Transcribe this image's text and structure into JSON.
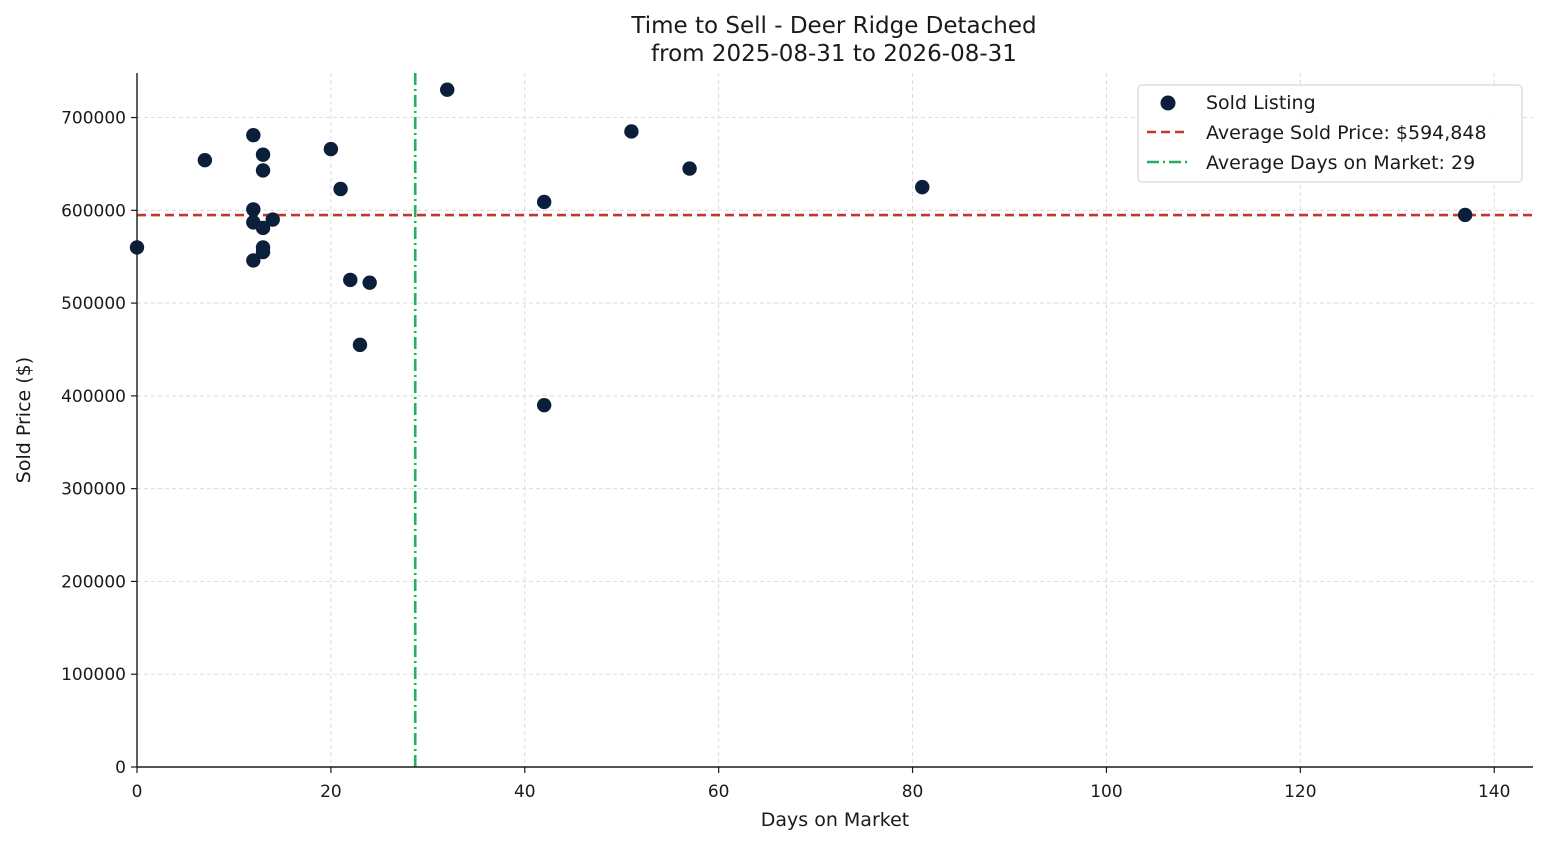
{
  "chart_data": {
    "type": "scatter",
    "title_line1": "Time to Sell - Deer Ridge Detached",
    "title_line2": "from 2025-08-31 to 2026-08-31",
    "xlabel": "Days on Market",
    "ylabel": "Sold Price ($)",
    "xlim": [
      0,
      144
    ],
    "ylim": [
      0,
      748000
    ],
    "x_ticks": [
      0,
      20,
      40,
      60,
      80,
      100,
      120,
      140
    ],
    "y_ticks": [
      0,
      100000,
      200000,
      300000,
      400000,
      500000,
      600000,
      700000
    ],
    "grid": true,
    "legend_position": "top-right",
    "series": [
      {
        "name": "Sold Listing",
        "color": "#0b1f3a",
        "points": [
          {
            "x": 0,
            "y": 560000
          },
          {
            "x": 7,
            "y": 654000
          },
          {
            "x": 12,
            "y": 681000
          },
          {
            "x": 12,
            "y": 601000
          },
          {
            "x": 12,
            "y": 587000
          },
          {
            "x": 12,
            "y": 546000
          },
          {
            "x": 13,
            "y": 660000
          },
          {
            "x": 13,
            "y": 643000
          },
          {
            "x": 13,
            "y": 581000
          },
          {
            "x": 13,
            "y": 560000
          },
          {
            "x": 13,
            "y": 555000
          },
          {
            "x": 14,
            "y": 590000
          },
          {
            "x": 20,
            "y": 666000
          },
          {
            "x": 21,
            "y": 623000
          },
          {
            "x": 22,
            "y": 525000
          },
          {
            "x": 23,
            "y": 455000
          },
          {
            "x": 24,
            "y": 522000
          },
          {
            "x": 32,
            "y": 730000
          },
          {
            "x": 42,
            "y": 609000
          },
          {
            "x": 42,
            "y": 390000
          },
          {
            "x": 51,
            "y": 685000
          },
          {
            "x": 57,
            "y": 645000
          },
          {
            "x": 81,
            "y": 625000
          },
          {
            "x": 137,
            "y": 595000
          }
        ]
      }
    ],
    "reference_lines": [
      {
        "name": "Average Sold Price: $594,848",
        "orientation": "horizontal",
        "value": 594848,
        "color": "#c0392b",
        "style": "dashed"
      },
      {
        "name": "Average Days on Market: 29",
        "orientation": "vertical",
        "value": 28.7,
        "color": "#27ae60",
        "style": "dashdot"
      }
    ]
  }
}
